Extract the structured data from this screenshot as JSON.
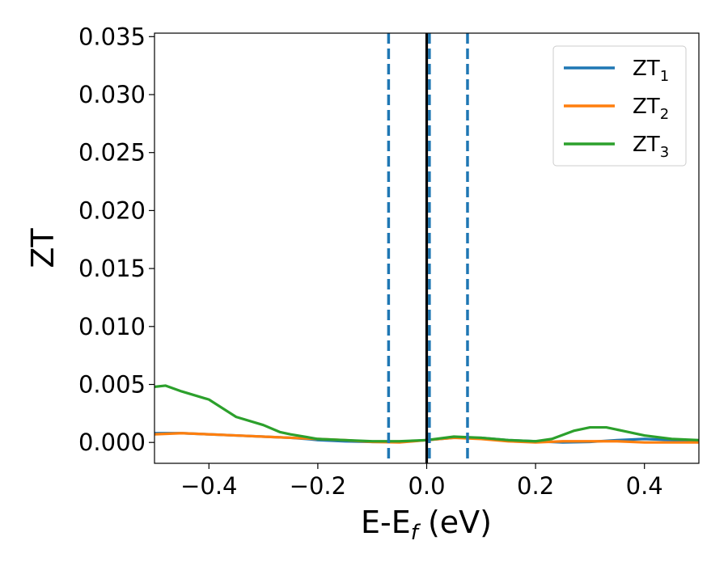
{
  "chart_data": {
    "type": "line",
    "xlabel": {
      "main": "E-E",
      "sub": "f",
      "rest": " (eV)"
    },
    "ylabel": "ZT",
    "xlim": [
      -0.5,
      0.5
    ],
    "ylim": [
      -0.0018,
      0.0353
    ],
    "xticks": [
      -0.4,
      -0.2,
      0.0,
      0.2,
      0.4
    ],
    "xtick_labels": [
      "−0.4",
      "−0.2",
      "0.0",
      "0.2",
      "0.4"
    ],
    "yticks": [
      0.0,
      0.005,
      0.01,
      0.015,
      0.02,
      0.025,
      0.03,
      0.035
    ],
    "ytick_labels": [
      "0.000",
      "0.005",
      "0.010",
      "0.015",
      "0.020",
      "0.025",
      "0.030",
      "0.035"
    ],
    "grid": false,
    "legend_position": "top-right",
    "vlines": [
      {
        "x": -0.07,
        "style": "dashed",
        "color": "#1f77b4"
      },
      {
        "x": 0.005,
        "style": "dashed",
        "color": "#1f77b4"
      },
      {
        "x": 0.075,
        "style": "dashed",
        "color": "#1f77b4"
      },
      {
        "x": 0.0,
        "style": "solid",
        "color": "#000000"
      }
    ],
    "series": [
      {
        "name": "ZT",
        "sub": "1",
        "color": "#1f77b4",
        "x": [
          -0.5,
          -0.45,
          -0.4,
          -0.35,
          -0.3,
          -0.25,
          -0.22,
          -0.2,
          -0.15,
          -0.1,
          -0.05,
          0.0,
          0.05,
          0.1,
          0.15,
          0.2,
          0.25,
          0.3,
          0.35,
          0.4,
          0.45,
          0.5
        ],
        "values": [
          0.0008,
          0.0008,
          0.0007,
          0.0006,
          0.0005,
          0.0004,
          0.0003,
          0.0002,
          0.0001,
          5e-05,
          5e-05,
          0.0002,
          0.0004,
          0.0004,
          0.0002,
          0.0001,
          0.0,
          5e-05,
          0.0002,
          0.0003,
          0.0002,
          0.0001
        ]
      },
      {
        "name": "ZT",
        "sub": "2",
        "color": "#ff7f0e",
        "x": [
          -0.5,
          -0.45,
          -0.4,
          -0.35,
          -0.3,
          -0.25,
          -0.2,
          -0.15,
          -0.1,
          -0.05,
          0.0,
          0.05,
          0.1,
          0.15,
          0.2,
          0.25,
          0.3,
          0.35,
          0.4,
          0.45,
          0.5
        ],
        "values": [
          0.0007,
          0.0008,
          0.0007,
          0.0006,
          0.0005,
          0.0004,
          0.0003,
          0.0002,
          5e-05,
          0.0,
          0.0002,
          0.0004,
          0.0003,
          0.0001,
          0.0,
          0.0001,
          0.0001,
          0.0001,
          0.0,
          0.0,
          0.0
        ]
      },
      {
        "name": "ZT",
        "sub": "3",
        "color": "#2ca02c",
        "x": [
          -0.5,
          -0.48,
          -0.45,
          -0.4,
          -0.35,
          -0.3,
          -0.27,
          -0.25,
          -0.2,
          -0.15,
          -0.1,
          -0.05,
          0.0,
          0.05,
          0.1,
          0.15,
          0.2,
          0.23,
          0.27,
          0.3,
          0.33,
          0.36,
          0.4,
          0.45,
          0.5
        ],
        "values": [
          0.0048,
          0.0049,
          0.0044,
          0.0037,
          0.0022,
          0.0015,
          0.0009,
          0.0007,
          0.0003,
          0.0002,
          0.0001,
          0.0001,
          0.0002,
          0.0005,
          0.0004,
          0.0002,
          0.0001,
          0.0003,
          0.001,
          0.0013,
          0.0013,
          0.001,
          0.0006,
          0.0003,
          0.0002
        ]
      }
    ]
  }
}
